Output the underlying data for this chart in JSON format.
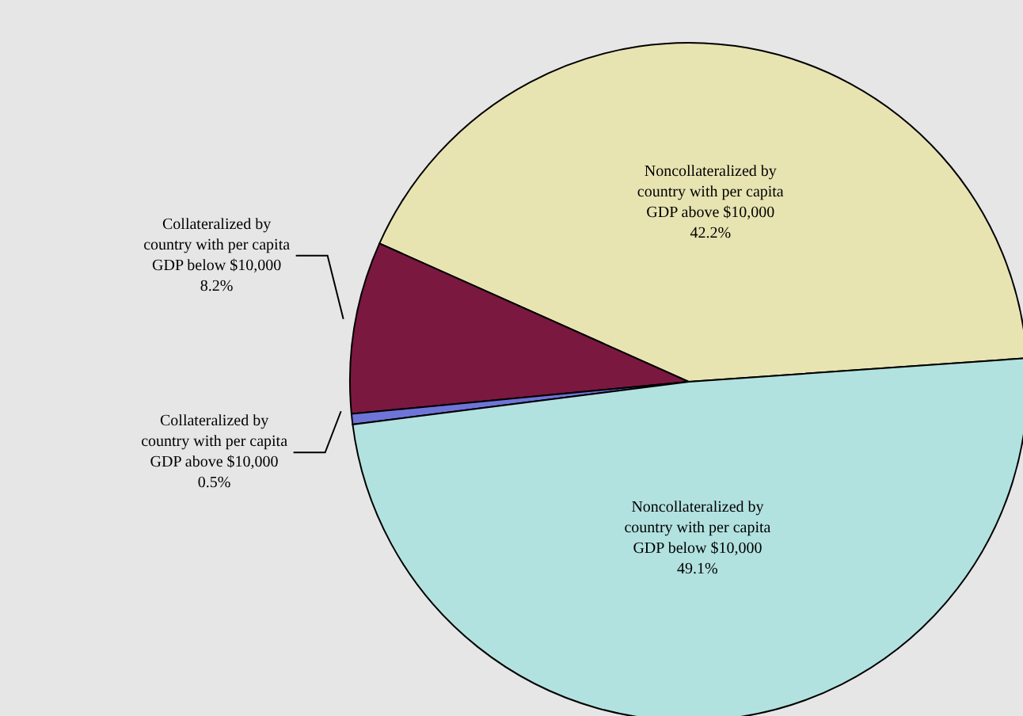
{
  "chart_data": {
    "type": "pie",
    "categories": [
      "Noncollateralized by country with per capita GDP above $10,000",
      "Collateralized by country with per capita GDP below $10,000",
      "Collateralized by country with per capita GDP above $10,000",
      "Noncollateralized by country with per capita GDP below $10,000"
    ],
    "values": [
      42.2,
      8.2,
      0.5,
      49.1
    ],
    "value_labels": [
      "42.2%",
      "8.2%",
      "0.5%",
      "49.1%"
    ],
    "colors": [
      "#e8e4b2",
      "#7a1840",
      "#6f74d8",
      "#b2e2e0"
    ]
  }
}
